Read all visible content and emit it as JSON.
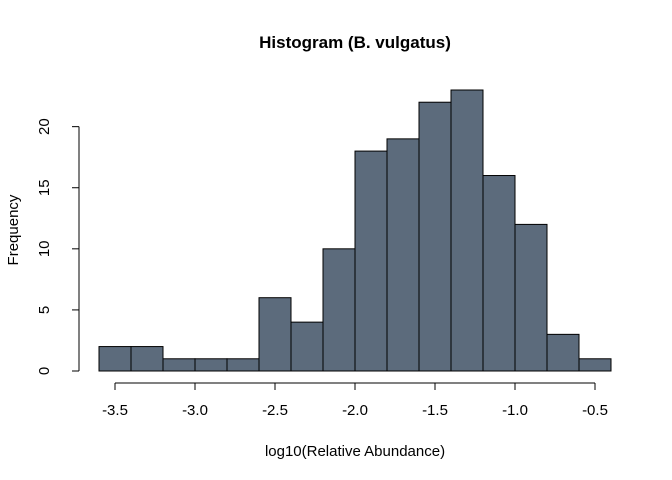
{
  "chart_data": {
    "type": "bar",
    "title": "Histogram (B. vulgatus)",
    "xlabel": "log10(Relative Abundance)",
    "ylabel": "Frequency",
    "bin_edges": [
      -3.6,
      -3.4,
      -3.2,
      -3.0,
      -2.8,
      -2.6,
      -2.4,
      -2.2,
      -2.0,
      -1.8,
      -1.6,
      -1.4,
      -1.2,
      -1.0,
      -0.8,
      -0.6,
      -0.4
    ],
    "values": [
      2,
      2,
      1,
      1,
      1,
      6,
      4,
      10,
      18,
      19,
      22,
      23,
      16,
      12,
      3,
      1
    ],
    "xlim": [
      -3.6,
      -0.4
    ],
    "ylim": [
      0,
      23
    ],
    "x_ticks": [
      -3.5,
      -3.0,
      -2.5,
      -2.0,
      -1.5,
      -1.0,
      -0.5
    ],
    "x_tick_labels": [
      "-3.5",
      "-3.0",
      "-2.5",
      "-2.0",
      "-1.5",
      "-1.0",
      "-0.5"
    ],
    "y_ticks": [
      0,
      5,
      10,
      15,
      20
    ],
    "y_tick_labels": [
      "0",
      "5",
      "10",
      "15",
      "20"
    ],
    "bar_color": "#5c6b7c",
    "grid": false
  }
}
